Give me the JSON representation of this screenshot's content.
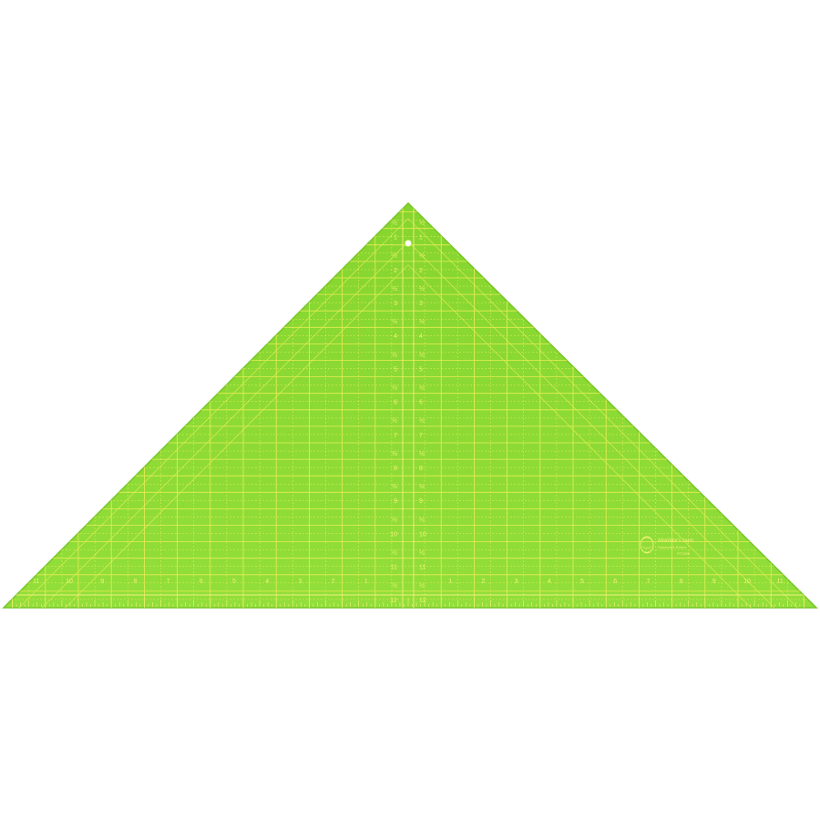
{
  "product": {
    "brand": "Matilda's own",
    "subtitle": "Patchwork Rulers",
    "code": "PT1295"
  },
  "scale": {
    "center_labels": [
      "1",
      "2",
      "3",
      "4",
      "5",
      "6",
      "7",
      "8",
      "9",
      "10",
      "11",
      "12"
    ],
    "base_labels_left": [
      "11",
      "10",
      "9",
      "8",
      "7",
      "6",
      "5",
      "4",
      "3",
      "2",
      "1"
    ],
    "base_labels_right": [
      "1",
      "2",
      "3",
      "4",
      "5",
      "6",
      "7",
      "8",
      "9",
      "10",
      "11"
    ]
  },
  "colors": {
    "ruler_fill": "#8fdc37",
    "ruler_edge": "#7bcc2a",
    "grid_line": "#e8ee55",
    "marking": "#f3f27a",
    "background": "#ffffff"
  }
}
